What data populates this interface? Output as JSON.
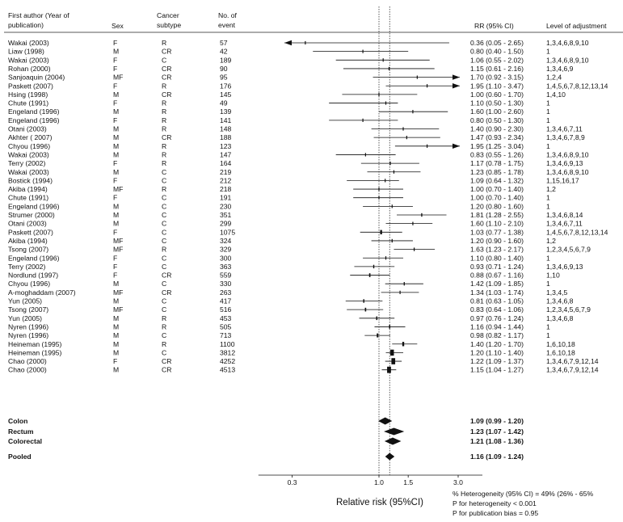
{
  "chart_data": {
    "type": "forest",
    "columns": {
      "author": "First author (Year of\npublication)",
      "sex": "Sex",
      "cancer": "Cancer\nsubtype",
      "events": "No. of\nevent",
      "rr": "RR (95% CI)",
      "adjust": "Level of adjustment"
    },
    "studies": [
      {
        "author": "Wakai (2003)",
        "sex": "F",
        "cancer": "R",
        "events": "57",
        "rr": 0.36,
        "lo": 0.05,
        "hi": 2.65,
        "text": "0.36 (0.05 - 2.65)",
        "adj": "1,3,4,6,8,9,10",
        "arrowLo": true,
        "arrowHi": false
      },
      {
        "author": "Liaw (1998)",
        "sex": "M",
        "cancer": "CR",
        "events": "42",
        "rr": 0.8,
        "lo": 0.4,
        "hi": 1.5,
        "text": "0.80 (0.40 - 1.50)",
        "adj": "1"
      },
      {
        "author": "Wakai (2003)",
        "sex": "F",
        "cancer": "C",
        "events": "189",
        "rr": 1.06,
        "lo": 0.55,
        "hi": 2.02,
        "text": "1.06 (0.55 - 2.02)",
        "adj": "1,3,4,6,8,9,10"
      },
      {
        "author": "Rohan (2000)",
        "sex": "F",
        "cancer": "CR",
        "events": "90",
        "rr": 1.15,
        "lo": 0.61,
        "hi": 2.16,
        "text": "1.15 (0.61 - 2.16)",
        "adj": "1,3,4,6,9"
      },
      {
        "author": "Sanjoaquin (2004)",
        "sex": "MF",
        "cancer": "CR",
        "events": "95",
        "rr": 1.7,
        "lo": 0.92,
        "hi": 3.15,
        "text": "1.70 (0.92 - 3.15)",
        "adj": "1,2,4",
        "arrowHi": true
      },
      {
        "author": "Paskett (2007)",
        "sex": "F",
        "cancer": "R",
        "events": "176",
        "rr": 1.95,
        "lo": 1.1,
        "hi": 3.47,
        "text": "1.95 (1.10 - 3.47)",
        "adj": "1,4,5,6,7,8,12,13,14",
        "arrowHi": true
      },
      {
        "author": "Hsing (1998)",
        "sex": "M",
        "cancer": "CR",
        "events": "145",
        "rr": 1.0,
        "lo": 0.6,
        "hi": 1.7,
        "text": "1.00 (0.60 - 1.70)",
        "adj": "1,4,10"
      },
      {
        "author": "Chute (1991)",
        "sex": "F",
        "cancer": "R",
        "events": "49",
        "rr": 1.1,
        "lo": 0.5,
        "hi": 1.3,
        "text": "1.10 (0.50 - 1.30)",
        "adj": "1"
      },
      {
        "author": "Engeland (1996)",
        "sex": "M",
        "cancer": "R",
        "events": "139",
        "rr": 1.6,
        "lo": 1.0,
        "hi": 2.6,
        "text": "1.60 (1.00 - 2.60)",
        "adj": "1"
      },
      {
        "author": "Engeland (1996)",
        "sex": "F",
        "cancer": "R",
        "events": "141",
        "rr": 0.8,
        "lo": 0.5,
        "hi": 1.3,
        "text": "0.80 (0.50 - 1.30)",
        "adj": "1"
      },
      {
        "author": "Otani (2003)",
        "sex": "M",
        "cancer": "R",
        "events": "148",
        "rr": 1.4,
        "lo": 0.9,
        "hi": 2.3,
        "text": "1.40 (0.90 - 2.30)",
        "adj": "1,3,4,6,7,11"
      },
      {
        "author": "Akhter ( 2007)",
        "sex": "M",
        "cancer": "CR",
        "events": "188",
        "rr": 1.47,
        "lo": 0.93,
        "hi": 2.34,
        "text": "1.47 (0.93 - 2.34)",
        "adj": "1,3,4,6,7,8,9"
      },
      {
        "author": "Chyou (1996)",
        "sex": "M",
        "cancer": "R",
        "events": "123",
        "rr": 1.95,
        "lo": 1.25,
        "hi": 3.04,
        "text": "1.95 (1.25 - 3.04)",
        "adj": "1",
        "arrowHi": true
      },
      {
        "author": "Wakai (2003)",
        "sex": "M",
        "cancer": "R",
        "events": "147",
        "rr": 0.83,
        "lo": 0.55,
        "hi": 1.26,
        "text": "0.83 (0.55 - 1.26)",
        "adj": "1,3,4,6,8,9,10"
      },
      {
        "author": "Terry (2002)",
        "sex": "F",
        "cancer": "R",
        "events": "164",
        "rr": 1.17,
        "lo": 0.78,
        "hi": 1.75,
        "text": "1.17 (0.78 - 1.75)",
        "adj": "1,3,4,6,9,13"
      },
      {
        "author": "Wakai (2003)",
        "sex": "M",
        "cancer": "C",
        "events": "219",
        "rr": 1.23,
        "lo": 0.85,
        "hi": 1.78,
        "text": "1.23 (0.85 - 1.78)",
        "adj": "1,3,4,6,8,9,10"
      },
      {
        "author": "Bostick (1994)",
        "sex": "F",
        "cancer": "C",
        "events": "212",
        "rr": 1.09,
        "lo": 0.64,
        "hi": 1.32,
        "text": "1.09 (0.64 - 1.32)",
        "adj": "1,15,16,17"
      },
      {
        "author": "Akiba (1994)",
        "sex": "MF",
        "cancer": "R",
        "events": "218",
        "rr": 1.0,
        "lo": 0.7,
        "hi": 1.4,
        "text": "1.00 (0.70 - 1.40)",
        "adj": "1,2"
      },
      {
        "author": "Chute (1991)",
        "sex": "F",
        "cancer": "C",
        "events": "191",
        "rr": 1.0,
        "lo": 0.7,
        "hi": 1.4,
        "text": "1.00 (0.70 - 1.40)",
        "adj": "1"
      },
      {
        "author": "Engeland (1996)",
        "sex": "M",
        "cancer": "C",
        "events": "230",
        "rr": 1.2,
        "lo": 0.8,
        "hi": 1.6,
        "text": "1.20 (0.80 - 1.60)",
        "adj": "1"
      },
      {
        "author": "Strumer (2000)",
        "sex": "M",
        "cancer": "C",
        "events": "351",
        "rr": 1.81,
        "lo": 1.28,
        "hi": 2.55,
        "text": "1.81 (1.28 - 2.55)",
        "adj": "1,3,4,6,8,14"
      },
      {
        "author": "Otani (2003)",
        "sex": "M",
        "cancer": "C",
        "events": "299",
        "rr": 1.6,
        "lo": 1.1,
        "hi": 2.1,
        "text": "1.60 (1.10 - 2.10)",
        "adj": "1,3,4,6,7,11"
      },
      {
        "author": "Paskett (2007)",
        "sex": "F",
        "cancer": "C",
        "events": "1075",
        "rr": 1.03,
        "lo": 0.77,
        "hi": 1.38,
        "text": "1.03 (0.77 - 1.38)",
        "adj": "1,4,5,6,7,8,12,13,14"
      },
      {
        "author": "Akiba (1994)",
        "sex": "MF",
        "cancer": "C",
        "events": "324",
        "rr": 1.2,
        "lo": 0.9,
        "hi": 1.6,
        "text": "1.20 (0.90 - 1.60)",
        "adj": "1,2"
      },
      {
        "author": "Tsong (2007)",
        "sex": "MF",
        "cancer": "R",
        "events": "329",
        "rr": 1.63,
        "lo": 1.23,
        "hi": 2.17,
        "text": "1.63 (1.23 - 2.17)",
        "adj": "1,2,3,4,5,6,7,9"
      },
      {
        "author": "Engeland (1996)",
        "sex": "F",
        "cancer": "C",
        "events": "300",
        "rr": 1.1,
        "lo": 0.8,
        "hi": 1.4,
        "text": "1.10 (0.80 - 1.40)",
        "adj": "1"
      },
      {
        "author": "Terry (2002)",
        "sex": "F",
        "cancer": "C",
        "events": "363",
        "rr": 0.93,
        "lo": 0.71,
        "hi": 1.24,
        "text": "0.93 (0.71 - 1.24)",
        "adj": "1,3,4,6,9,13"
      },
      {
        "author": "Nordlund (1997)",
        "sex": "F",
        "cancer": "CR",
        "events": "559",
        "rr": 0.88,
        "lo": 0.67,
        "hi": 1.16,
        "text": "0.88 (0.67 - 1.16)",
        "adj": "1,10"
      },
      {
        "author": "Chyou (1996)",
        "sex": "M",
        "cancer": "C",
        "events": "330",
        "rr": 1.42,
        "lo": 1.09,
        "hi": 1.85,
        "text": "1.42 (1.09 - 1.85)",
        "adj": "1"
      },
      {
        "author": "A-moghaddam (2007)",
        "sex": "MF",
        "cancer": "CR",
        "events": "263",
        "rr": 1.34,
        "lo": 1.03,
        "hi": 1.74,
        "text": "1.34 (1.03 - 1.74)",
        "adj": "1,3,4,5"
      },
      {
        "author": "Yun (2005)",
        "sex": "M",
        "cancer": "C",
        "events": "417",
        "rr": 0.81,
        "lo": 0.63,
        "hi": 1.05,
        "text": "0.81 (0.63 - 1.05)",
        "adj": "1,3,4,6,8"
      },
      {
        "author": "Tsong (2007)",
        "sex": "MF",
        "cancer": "C",
        "events": "516",
        "rr": 0.83,
        "lo": 0.64,
        "hi": 1.06,
        "text": "0.83 (0.64 - 1.06)",
        "adj": "1,2,3,4,5,6,7,9"
      },
      {
        "author": "Yun (2005)",
        "sex": "M",
        "cancer": "R",
        "events": "453",
        "rr": 0.97,
        "lo": 0.76,
        "hi": 1.24,
        "text": "0.97 (0.76 - 1.24)",
        "adj": "1,3,4,6,8"
      },
      {
        "author": "Nyren (1996)",
        "sex": "M",
        "cancer": "R",
        "events": "505",
        "rr": 1.16,
        "lo": 0.94,
        "hi": 1.44,
        "text": "1.16 (0.94 - 1.44)",
        "adj": "1"
      },
      {
        "author": "Nyren (1996)",
        "sex": "M",
        "cancer": "C",
        "events": "713",
        "rr": 0.98,
        "lo": 0.82,
        "hi": 1.17,
        "text": "0.98 (0.82 - 1.17)",
        "adj": "1"
      },
      {
        "author": "Heineman (1995)",
        "sex": "M",
        "cancer": "R",
        "events": "1100",
        "rr": 1.4,
        "lo": 1.2,
        "hi": 1.7,
        "text": "1.40 (1.20 - 1.70)",
        "adj": "1,6,10,18"
      },
      {
        "author": "Heineman (1995)",
        "sex": "M",
        "cancer": "C",
        "events": "3812",
        "rr": 1.2,
        "lo": 1.1,
        "hi": 1.4,
        "text": "1.20 (1.10 - 1.40)",
        "adj": "1,6,10,18"
      },
      {
        "author": "Chao (2000)",
        "sex": "F",
        "cancer": "CR",
        "events": "4252",
        "rr": 1.22,
        "lo": 1.09,
        "hi": 1.37,
        "text": "1.22 (1.09 - 1.37)",
        "adj": "1,3,4,6,7,9,12,14"
      },
      {
        "author": "Chao (2000)",
        "sex": "M",
        "cancer": "CR",
        "events": "4513",
        "rr": 1.15,
        "lo": 1.04,
        "hi": 1.27,
        "text": "1.15 (1.04 - 1.27)",
        "adj": "1,3,4,6,7,9,12,14"
      }
    ],
    "summaries": [
      {
        "label": "Colon",
        "rr": 1.09,
        "lo": 0.99,
        "hi": 1.2,
        "text": "1.09 (0.99 - 1.20)"
      },
      {
        "label": "Rectum",
        "rr": 1.23,
        "lo": 1.07,
        "hi": 1.42,
        "text": "1.23 (1.07 - 1.42)"
      },
      {
        "label": "Colorectal",
        "rr": 1.21,
        "lo": 1.08,
        "hi": 1.36,
        "text": "1.21 (1.08 - 1.36)"
      },
      {
        "label": "Pooled",
        "rr": 1.16,
        "lo": 1.09,
        "hi": 1.24,
        "text": "1.16 (1.09 - 1.24)"
      }
    ],
    "x_scale": "log",
    "xlim": [
      0.21,
      4.2
    ],
    "xticks": [
      {
        "v": 0.3,
        "label": "0.3"
      },
      {
        "v": 1.0,
        "label": "1.0"
      },
      {
        "v": 1.5,
        "label": "1.5"
      },
      {
        "v": 3.0,
        "label": "3.0"
      }
    ],
    "reference_lines": [
      1.0,
      1.16
    ],
    "xlabel": "Relative risk (95%CI)",
    "notes": [
      "% Heterogeneity (95%  CI) = 49%  (26% - 65%",
      "P for heterogeneity  < 0.001",
      "P for publication bias = 0.95"
    ]
  }
}
